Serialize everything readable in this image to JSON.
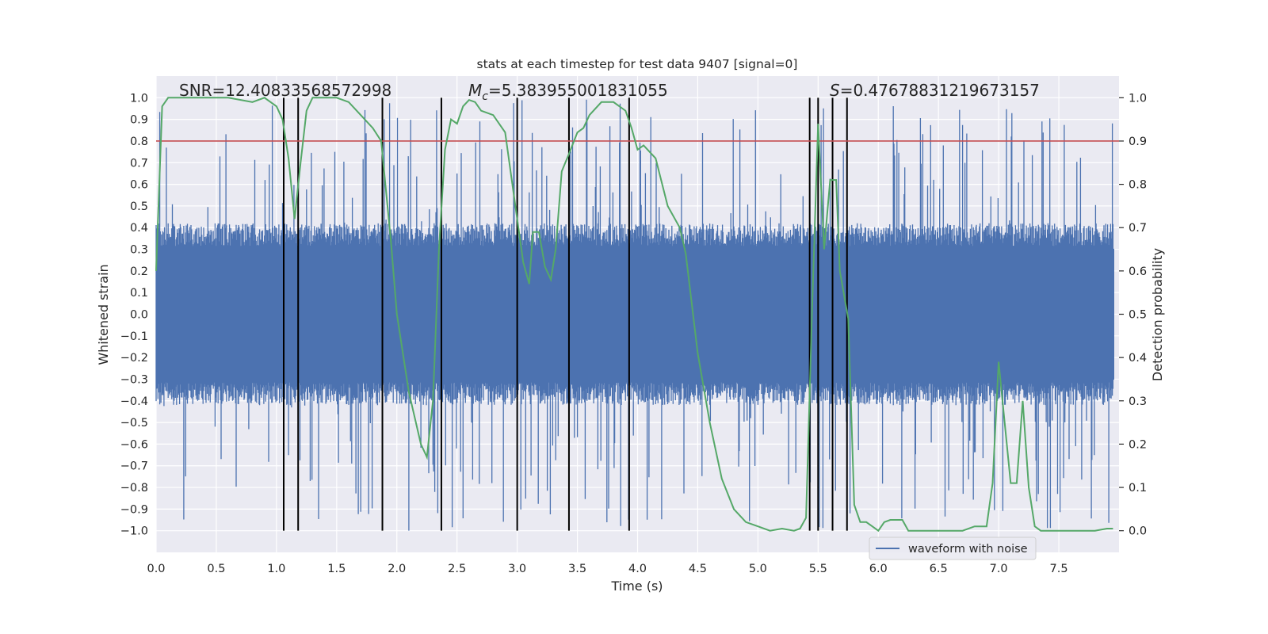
{
  "chart_data": {
    "type": "line",
    "title": "stats at each timestep for test data 9407 [signal=0]",
    "xlabel": "Time (s)",
    "ylabel_left": "Whitened strain",
    "ylabel_right": "Detection probability",
    "xlim": [
      0.0,
      8.0
    ],
    "ylim_left": [
      -1.1,
      1.1
    ],
    "ylim_right": [
      -0.05,
      1.05
    ],
    "x_ticks": [
      "0.0",
      "0.5",
      "1.0",
      "1.5",
      "2.0",
      "2.5",
      "3.0",
      "3.5",
      "4.0",
      "4.5",
      "5.0",
      "5.5",
      "6.0",
      "6.5",
      "7.0",
      "7.5"
    ],
    "y_ticks_left": [
      "1.0",
      "0.9",
      "0.8",
      "0.7",
      "0.6",
      "0.5",
      "0.4",
      "0.3",
      "0.2",
      "0.1",
      "0.0",
      "−0.1",
      "−0.2",
      "−0.3",
      "−0.4",
      "−0.5",
      "−0.6",
      "−0.7",
      "−0.8",
      "−0.9",
      "−1.0"
    ],
    "y_ticks_right": [
      "1.0",
      "0.9",
      "0.8",
      "0.7",
      "0.6",
      "0.5",
      "0.4",
      "0.3",
      "0.2",
      "0.1",
      "0.0"
    ],
    "annotations": {
      "snr": "SNR=12.40833568572998",
      "mc_symbol": "M",
      "mc_sub": "c",
      "mc_value": "=5.383955001831055",
      "s_symbol": "S",
      "s_value": "=0.47678831219673157"
    },
    "threshold": {
      "value": 0.9,
      "axis": "right",
      "color": "#c44e52"
    },
    "event_markers": [
      1.06,
      1.18,
      1.88,
      2.37,
      3.0,
      3.43,
      3.93,
      5.43,
      5.5,
      5.62,
      5.74
    ],
    "legend": {
      "placement": "lower-center",
      "label": "waveform with noise"
    },
    "series": [
      {
        "name": "waveform with noise",
        "axis": "left",
        "color": "#4c72b0",
        "description": "whitened strain noise, 0.0–8.0 s, dense band ≈ ±0.4 with spikes to ≈ ±1.0",
        "envelope_typical": 0.42,
        "envelope_peak": 1.0
      },
      {
        "name": "detection probability",
        "axis": "right",
        "color": "#55a868",
        "x": [
          0.0,
          0.05,
          0.1,
          0.2,
          0.4,
          0.6,
          0.8,
          0.9,
          1.0,
          1.05,
          1.1,
          1.15,
          1.2,
          1.25,
          1.3,
          1.4,
          1.5,
          1.6,
          1.7,
          1.8,
          1.87,
          1.95,
          2.0,
          2.1,
          2.2,
          2.25,
          2.3,
          2.35,
          2.4,
          2.45,
          2.5,
          2.55,
          2.6,
          2.65,
          2.7,
          2.8,
          2.9,
          3.0,
          3.05,
          3.1,
          3.13,
          3.18,
          3.23,
          3.28,
          3.32,
          3.37,
          3.43,
          3.5,
          3.55,
          3.6,
          3.7,
          3.8,
          3.9,
          3.95,
          4.0,
          4.05,
          4.15,
          4.25,
          4.35,
          4.4,
          4.5,
          4.6,
          4.7,
          4.8,
          4.9,
          5.0,
          5.1,
          5.2,
          5.3,
          5.35,
          5.4,
          5.45,
          5.5,
          5.55,
          5.6,
          5.65,
          5.68,
          5.75,
          5.8,
          5.85,
          5.9,
          5.95,
          6.0,
          6.05,
          6.1,
          6.2,
          6.25,
          6.3,
          6.4,
          6.5,
          6.6,
          6.7,
          6.8,
          6.9,
          6.95,
          7.0,
          7.05,
          7.1,
          7.15,
          7.2,
          7.25,
          7.3,
          7.35,
          7.4,
          7.45,
          7.55,
          7.7,
          7.8,
          7.9,
          7.95
        ],
        "values": [
          0.6,
          0.98,
          1.0,
          1.0,
          1.0,
          1.0,
          0.99,
          1.0,
          0.98,
          0.95,
          0.86,
          0.72,
          0.85,
          0.97,
          1.0,
          1.0,
          1.0,
          0.99,
          0.96,
          0.93,
          0.9,
          0.67,
          0.5,
          0.32,
          0.2,
          0.17,
          0.3,
          0.65,
          0.88,
          0.95,
          0.94,
          0.98,
          0.995,
          0.99,
          0.97,
          0.96,
          0.92,
          0.72,
          0.62,
          0.57,
          0.69,
          0.69,
          0.61,
          0.58,
          0.65,
          0.83,
          0.87,
          0.92,
          0.93,
          0.96,
          0.99,
          0.99,
          0.97,
          0.93,
          0.88,
          0.89,
          0.86,
          0.75,
          0.7,
          0.64,
          0.41,
          0.25,
          0.12,
          0.05,
          0.02,
          0.01,
          0.0,
          0.005,
          0.0,
          0.005,
          0.03,
          0.51,
          0.94,
          0.65,
          0.81,
          0.81,
          0.6,
          0.49,
          0.06,
          0.02,
          0.02,
          0.01,
          0.0,
          0.02,
          0.025,
          0.025,
          0.0,
          0.0,
          0.0,
          0.0,
          0.0,
          0.0,
          0.01,
          0.01,
          0.11,
          0.39,
          0.25,
          0.11,
          0.11,
          0.3,
          0.1,
          0.01,
          0.0,
          0.0,
          0.0,
          0.0,
          0.0,
          0.0,
          0.005,
          0.005
        ]
      }
    ]
  }
}
